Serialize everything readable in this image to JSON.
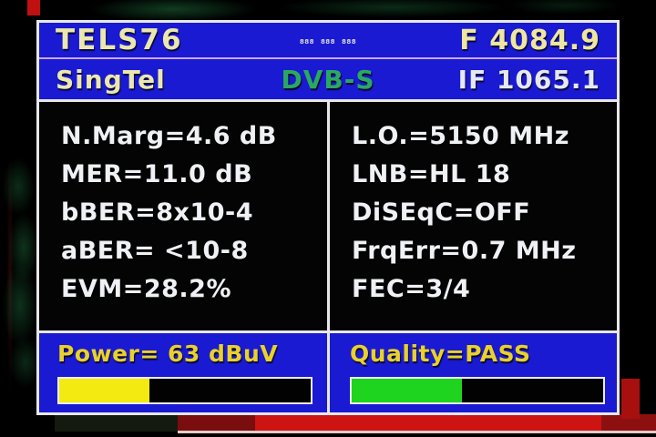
{
  "header": {
    "device_name": "TELS76",
    "frequency": "F 4084.9",
    "ticker": "888 888 888"
  },
  "subheader": {
    "provider": "SingTel",
    "standard": "DVB-S",
    "if_frequency": "IF 1065.1"
  },
  "measurements": {
    "left": [
      "N.Marg=4.6 dB",
      "MER=11.0 dB",
      "bBER=8x10-4",
      "aBER= <10-8",
      "EVM=28.2%"
    ],
    "right": [
      "L.O.=5150 MHz",
      "LNB=HL 18",
      "DiSEqC=OFF",
      "FrqErr=0.7 MHz",
      "FEC=3/4"
    ]
  },
  "power": {
    "label": "Power= 63 dBuV",
    "value": "63",
    "unit": "dBuV",
    "bar_percent": 36,
    "bar_style": "width:36%"
  },
  "quality": {
    "label": "Quality=PASS",
    "status": "PASS",
    "bar_percent": 44,
    "bar_style": "width:44%"
  },
  "colors": {
    "panel_blue": "#1a1ad2",
    "power_bar": "#f2ea10",
    "quality_bar": "#1ed41e",
    "standard_green": "#2aa862",
    "header_text": "#ece7ae",
    "label_yellow": "#e9d12a",
    "divider_lavender": "#c9a4e4"
  }
}
